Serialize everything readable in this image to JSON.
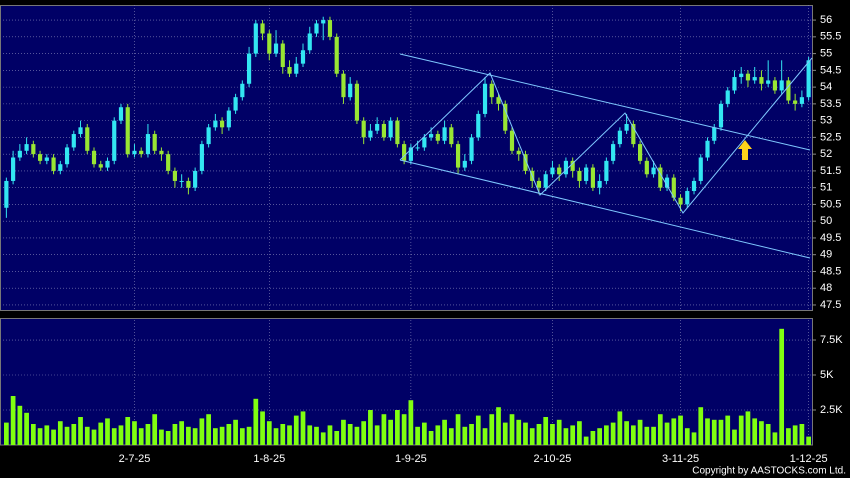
{
  "chart_data": {
    "type": "candlestick",
    "categories": [
      null,
      null,
      null,
      null,
      null,
      null,
      null,
      null,
      null,
      null,
      null,
      null,
      null,
      null,
      null,
      null,
      null,
      null,
      null,
      "2-7-25",
      null,
      null,
      null,
      null,
      null,
      null,
      null,
      null,
      null,
      null,
      null,
      null,
      null,
      null,
      null,
      null,
      null,
      null,
      null,
      "1-8-25",
      null,
      null,
      null,
      null,
      null,
      null,
      null,
      null,
      null,
      null,
      null,
      null,
      null,
      null,
      null,
      null,
      null,
      null,
      null,
      null,
      "1-9-25",
      null,
      null,
      null,
      null,
      null,
      null,
      null,
      null,
      null,
      null,
      null,
      null,
      null,
      null,
      null,
      null,
      null,
      null,
      null,
      null,
      "2-10-25",
      null,
      null,
      null,
      null,
      null,
      null,
      null,
      null,
      null,
      null,
      null,
      null,
      null,
      null,
      null,
      null,
      null,
      null,
      "3-11-25",
      null,
      null,
      null,
      null,
      null,
      null,
      null,
      null,
      null,
      null,
      null,
      null,
      null,
      null,
      null,
      null,
      null,
      null,
      "1-12-25"
    ],
    "open": [
      50.4,
      51.2,
      51.9,
      52.1,
      52.3,
      52.0,
      51.8,
      51.9,
      51.5,
      51.7,
      52.2,
      52.6,
      52.8,
      52.1,
      51.7,
      51.6,
      51.8,
      53.0,
      53.4,
      52.0,
      52.1,
      52.0,
      52.6,
      52.1,
      52.0,
      51.5,
      51.2,
      51.2,
      51.0,
      51.5,
      52.3,
      52.8,
      53.0,
      52.8,
      53.3,
      53.7,
      54.1,
      55.0,
      55.9,
      55.6,
      55.0,
      55.3,
      54.6,
      54.4,
      54.7,
      55.1,
      55.6,
      55.9,
      56.0,
      55.5,
      54.4,
      53.7,
      54.1,
      53.0,
      52.5,
      52.7,
      52.9,
      52.5,
      53.0,
      52.3,
      51.8,
      52.2,
      52.2,
      52.5,
      52.6,
      52.4,
      52.8,
      52.3,
      51.6,
      51.8,
      52.5,
      53.2,
      54.1,
      53.7,
      53.5,
      52.7,
      52.1,
      52.0,
      51.5,
      51.2,
      51.0,
      51.4,
      51.6,
      51.4,
      51.8,
      51.5,
      51.2,
      51.6,
      51.0,
      51.2,
      51.8,
      52.3,
      52.7,
      52.9,
      52.3,
      51.8,
      51.4,
      51.6,
      51.0,
      51.3,
      50.7,
      50.5,
      50.9,
      51.2,
      51.9,
      52.4,
      52.8,
      53.5,
      53.9,
      54.3,
      54.4,
      54.2,
      54.3,
      54.1,
      54.2,
      53.9,
      54.2,
      53.6,
      53.5,
      53.7
    ],
    "high": [
      51.3,
      52.1,
      52.3,
      52.5,
      52.4,
      52.1,
      52.0,
      52.0,
      51.8,
      52.3,
      52.7,
      53.0,
      52.9,
      52.2,
      51.8,
      51.9,
      53.1,
      53.5,
      53.5,
      52.3,
      52.2,
      52.9,
      52.7,
      52.2,
      52.1,
      51.6,
      51.4,
      51.3,
      51.6,
      52.4,
      52.9,
      53.2,
      53.1,
      53.4,
      53.8,
      54.2,
      55.2,
      56.0,
      56.0,
      55.7,
      55.7,
      55.4,
      54.8,
      54.9,
      55.3,
      55.8,
      56.0,
      56.1,
      56.1,
      55.6,
      54.5,
      54.3,
      54.2,
      53.1,
      52.9,
      53.1,
      53.0,
      53.1,
      53.1,
      52.4,
      52.3,
      52.4,
      52.6,
      52.8,
      52.7,
      53.0,
      52.9,
      52.4,
      52.0,
      52.6,
      53.3,
      54.3,
      54.2,
      53.8,
      53.6,
      52.8,
      52.2,
      52.1,
      51.6,
      51.3,
      51.5,
      51.8,
      51.7,
      51.9,
      51.9,
      51.6,
      51.7,
      51.7,
      51.4,
      51.9,
      52.4,
      52.8,
      53.2,
      53.0,
      52.4,
      51.9,
      51.8,
      51.7,
      51.4,
      51.4,
      50.8,
      51.0,
      51.3,
      52.0,
      52.5,
      52.9,
      53.6,
      54.0,
      54.5,
      54.6,
      54.5,
      54.6,
      54.5,
      54.8,
      54.3,
      54.8,
      54.3,
      53.8,
      53.9,
      54.9
    ],
    "low": [
      50.1,
      51.1,
      51.8,
      52.0,
      51.9,
      51.7,
      51.7,
      51.4,
      51.4,
      51.6,
      52.1,
      52.5,
      52.0,
      51.6,
      51.5,
      51.5,
      51.7,
      52.9,
      51.9,
      51.9,
      51.9,
      51.9,
      52.0,
      51.8,
      51.4,
      51.0,
      51.0,
      50.8,
      50.9,
      51.4,
      52.2,
      52.7,
      52.6,
      52.7,
      53.2,
      53.6,
      54.0,
      54.9,
      55.4,
      54.8,
      54.9,
      54.4,
      54.3,
      54.3,
      54.6,
      55.0,
      55.5,
      55.4,
      55.4,
      54.3,
      53.5,
      53.6,
      52.9,
      52.3,
      52.4,
      52.6,
      52.4,
      52.4,
      52.2,
      51.7,
      51.7,
      52.1,
      52.1,
      52.4,
      52.3,
      52.3,
      52.2,
      51.4,
      51.5,
      51.7,
      52.4,
      53.1,
      53.5,
      53.3,
      52.6,
      52.0,
      51.8,
      51.4,
      51.0,
      50.8,
      50.9,
      51.3,
      51.2,
      51.3,
      51.3,
      51.0,
      51.1,
      50.9,
      50.8,
      51.1,
      51.7,
      52.2,
      52.6,
      52.2,
      51.7,
      51.3,
      51.3,
      50.9,
      50.9,
      50.6,
      50.3,
      50.4,
      50.8,
      51.1,
      51.8,
      52.3,
      52.7,
      53.4,
      53.8,
      54.1,
      54.0,
      54.1,
      53.9,
      54.0,
      53.8,
      53.8,
      53.5,
      53.3,
      53.4,
      53.6
    ],
    "close": [
      51.2,
      51.9,
      52.1,
      52.3,
      52.0,
      51.8,
      51.9,
      51.5,
      51.7,
      52.2,
      52.6,
      52.8,
      52.1,
      51.7,
      51.6,
      51.8,
      53.0,
      53.4,
      52.0,
      52.1,
      52.0,
      52.6,
      52.1,
      52.0,
      51.5,
      51.2,
      51.2,
      51.0,
      51.5,
      52.3,
      52.8,
      53.0,
      52.8,
      53.3,
      53.7,
      54.1,
      55.0,
      55.9,
      55.6,
      55.0,
      55.3,
      54.6,
      54.4,
      54.7,
      55.1,
      55.6,
      55.9,
      56.0,
      55.5,
      54.4,
      53.7,
      54.1,
      53.0,
      52.5,
      52.7,
      52.9,
      52.5,
      53.0,
      52.3,
      51.8,
      52.2,
      52.2,
      52.5,
      52.6,
      52.4,
      52.8,
      52.3,
      51.6,
      51.8,
      52.5,
      53.2,
      54.1,
      53.7,
      53.5,
      52.7,
      52.1,
      52.0,
      51.5,
      51.2,
      51.0,
      51.4,
      51.6,
      51.4,
      51.8,
      51.5,
      51.2,
      51.6,
      51.0,
      51.2,
      51.8,
      52.3,
      52.7,
      52.9,
      52.3,
      51.8,
      51.4,
      51.6,
      51.0,
      51.3,
      50.7,
      50.5,
      50.9,
      51.2,
      51.9,
      52.4,
      52.8,
      53.5,
      53.9,
      54.3,
      54.4,
      54.2,
      54.3,
      54.1,
      54.2,
      53.9,
      54.2,
      53.6,
      53.5,
      53.7,
      54.8
    ],
    "up_color": "#33e6f2",
    "down_color": "#99e633",
    "ylim": [
      47.35,
      56.45
    ],
    "yticks": [
      47.5,
      48,
      48.5,
      49,
      49.5,
      50,
      50.5,
      51,
      51.5,
      52,
      52.5,
      53,
      53.5,
      54,
      54.5,
      55,
      55.5,
      56
    ],
    "grid": true,
    "volume": {
      "color": "#80ff10",
      "values": [
        1600,
        3500,
        2800,
        2300,
        1500,
        1200,
        1400,
        1100,
        1700,
        1300,
        1500,
        2000,
        1300,
        1100,
        1600,
        1900,
        1200,
        1400,
        2000,
        1700,
        1200,
        1500,
        2200,
        1100,
        1000,
        1500,
        1700,
        1300,
        1200,
        1900,
        2200,
        1200,
        1300,
        1500,
        1800,
        1200,
        1300,
        3300,
        2400,
        1700,
        1200,
        1500,
        1400,
        2100,
        2400,
        1400,
        1300,
        900,
        1400,
        1000,
        1800,
        1500,
        1300,
        1700,
        2500,
        1400,
        2200,
        1800,
        2500,
        2200,
        3200,
        1300,
        1600,
        1000,
        1400,
        1800,
        1200,
        2200,
        1300,
        1500,
        2100,
        1200,
        2200,
        2700,
        1600,
        2200,
        1800,
        1600,
        1200,
        1500,
        2000,
        1500,
        1800,
        1200,
        1400,
        1700,
        600,
        1000,
        1200,
        1400,
        1600,
        2400,
        1700,
        1400,
        1800,
        1300,
        1300,
        2200,
        1600,
        1900,
        2100,
        1200,
        900,
        2700,
        1900,
        1800,
        1800,
        2100,
        1100,
        2100,
        2400,
        1900,
        1700,
        1500,
        900,
        8300,
        1200,
        1400,
        1500,
        600
      ],
      "ylim": [
        0,
        8930
      ],
      "yticks": [
        {
          "value": 2500,
          "label": "2.5K"
        },
        {
          "value": 5000,
          "label": "5K"
        },
        {
          "value": 7500,
          "label": "7.5K"
        }
      ]
    }
  },
  "footer": {
    "copyright": "Copyright by AASTOCKS.com Ltd."
  }
}
